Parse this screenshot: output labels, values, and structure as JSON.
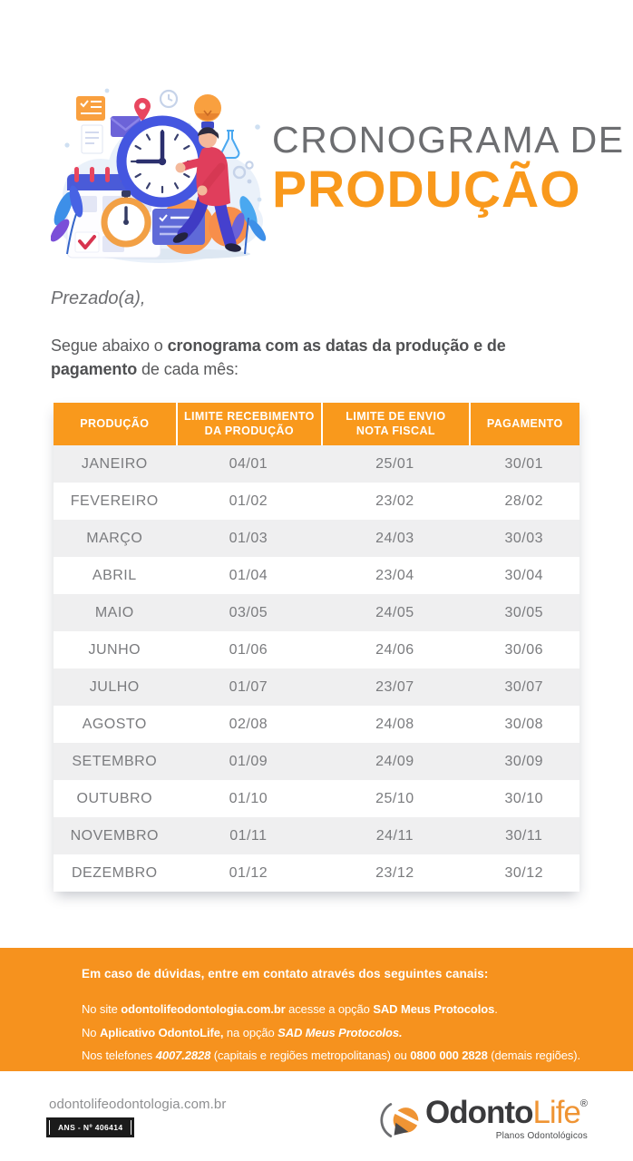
{
  "header": {
    "title_line1": "CRONOGRAMA DE",
    "title_line2": "PRODUÇÃO",
    "illustration": "person-with-clock-calendar-stopwatch-illustration"
  },
  "intro": {
    "salutation": "Prezado(a),",
    "body_prefix": "Segue abaixo o ",
    "body_bold": "cronograma com as datas da produção e de pagamento",
    "body_suffix": " de cada mês:"
  },
  "table": {
    "headers": [
      "PRODUÇÃO",
      "LIMITE RECEBIMENTO\nDA PRODUÇÃO",
      "LIMITE DE ENVIO\nNOTA FISCAL",
      "PAGAMENTO"
    ],
    "rows": [
      [
        "JANEIRO",
        "04/01",
        "25/01",
        "30/01"
      ],
      [
        "FEVEREIRO",
        "01/02",
        "23/02",
        "28/02"
      ],
      [
        "MARÇO",
        "01/03",
        "24/03",
        "30/03"
      ],
      [
        "ABRIL",
        "01/04",
        "23/04",
        "30/04"
      ],
      [
        "MAIO",
        "03/05",
        "24/05",
        "30/05"
      ],
      [
        "JUNHO",
        "01/06",
        "24/06",
        "30/06"
      ],
      [
        "JULHO",
        "01/07",
        "23/07",
        "30/07"
      ],
      [
        "AGOSTO",
        "02/08",
        "24/08",
        "30/08"
      ],
      [
        "SETEMBRO",
        "01/09",
        "24/09",
        "30/09"
      ],
      [
        "OUTUBRO",
        "01/10",
        "25/10",
        "30/10"
      ],
      [
        "NOVEMBRO",
        "01/11",
        "24/11",
        "30/11"
      ],
      [
        "DEZEMBRO",
        "01/12",
        "23/12",
        "30/12"
      ]
    ]
  },
  "contact_box": {
    "heading": "Em caso de dúvidas, entre em contato através dos seguintes canais:",
    "lines": [
      [
        {
          "text": "No site ",
          "style": "regular"
        },
        {
          "text": "odontolifeodontologia.com.br",
          "style": "bold"
        },
        {
          "text": " acesse a opção ",
          "style": "regular"
        },
        {
          "text": "SAD Meus Protocolos",
          "style": "bold"
        },
        {
          "text": ".",
          "style": "regular"
        }
      ],
      [
        {
          "text": "No ",
          "style": "regular"
        },
        {
          "text": "Aplicativo OdontoLife,",
          "style": "bold"
        },
        {
          "text": " na opção ",
          "style": "regular"
        },
        {
          "text": "SAD Meus Protocolos.",
          "style": "bold-italic"
        }
      ],
      [
        {
          "text": "Nos telefones ",
          "style": "regular"
        },
        {
          "text": "4007.2828",
          "style": "bold-italic"
        },
        {
          "text": " (capitais e regiões metropolitanas) ou ",
          "style": "regular"
        },
        {
          "text": "0800 000 2828",
          "style": "bold"
        },
        {
          "text": " (demais regiões).",
          "style": "regular"
        }
      ]
    ]
  },
  "footer": {
    "website": "odontolifeodontologia.com.br",
    "ans_registration": "ANS - Nº 406414",
    "logo": {
      "odonto": "Odonto",
      "life": "Life",
      "reg": "®",
      "tagline": "Planos Odontológicos"
    }
  },
  "colors": {
    "orange_primary": "#F9991C",
    "orange_deep": "#F6921E",
    "title_gray": "#6D6E71",
    "text_gray": "#58595B",
    "table_text": "#7A7B7E",
    "stripe": "#EFEFF0",
    "badge_black": "#1B1B1B",
    "logo_dark": "#3A3A3C",
    "logo_orange": "#EF9434"
  }
}
